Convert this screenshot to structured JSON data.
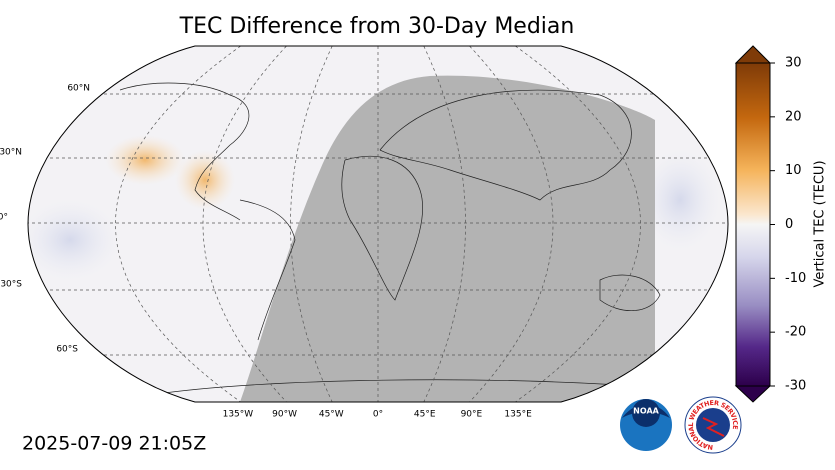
{
  "map": {
    "title": "TEC Difference from 30-Day Median",
    "lat_labels": [
      "60°N",
      "30°N",
      "0°",
      "30°S",
      "60°S"
    ],
    "lon_labels": [
      "135°W",
      "90°W",
      "45°W",
      "0°",
      "45°E",
      "90°E",
      "135°E"
    ]
  },
  "colorbar": {
    "label": "Vertical TEC (TECU)",
    "lim": [
      -30,
      30
    ],
    "ticks": [
      30,
      20,
      10,
      0,
      -10,
      -20,
      -30
    ]
  },
  "timestamp": "2025-07-09 21:05Z",
  "logos": {
    "noaa": "NOAA",
    "nws": "NATIONAL WEATHER SERVICE"
  }
}
